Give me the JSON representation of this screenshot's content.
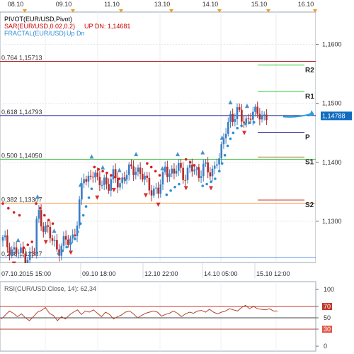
{
  "chart_data": [
    {
      "type": "candlestick",
      "symbol": "EUR/USD",
      "legend": [
        {
          "label": "PIVOT(EUR/USD,Pivot)",
          "color": "#000000"
        },
        {
          "label": "SAR(EUR/USD,0.02,0.2)",
          "suffix": "UP  DN: 1,14681",
          "color": "#cc0000"
        },
        {
          "label": "FRACTAL(EUR/USD)",
          "suffix": "Up  Dn",
          "color": "#2a8fd6"
        }
      ],
      "ylim": [
        1.123,
        1.1655
      ],
      "y_ticks": [
        {
          "value": 1.16,
          "label": "1,1600"
        },
        {
          "value": 1.15,
          "label": "1,1500"
        },
        {
          "value": 1.14,
          "label": "1,1400"
        },
        {
          "value": 1.13,
          "label": "1,1300"
        }
      ],
      "x_tick_labels": [
        "07.10.2015 15:00",
        "09.10 18:00",
        "12.10 22:00",
        "14.10 05:00",
        "15.10 12:00"
      ],
      "top_date_labels": [
        "08.10",
        "09.10",
        "11.10",
        "13.10",
        "14.10",
        "15.10",
        "16.10"
      ],
      "current_price": {
        "value": 1.14788,
        "label": "1,14788"
      },
      "fibonacci_levels": [
        {
          "label": "0,764 1,15713",
          "value": 1.15713,
          "color": "#b22222"
        },
        {
          "label": "0,618 1,14793",
          "value": 1.14793,
          "color": "#1c1c8c"
        },
        {
          "label": "0,500 1,14050",
          "value": 1.1405,
          "color": "#2fbf2f"
        },
        {
          "label": "0,382 1,13307",
          "value": 1.13307,
          "color": "#f4a460"
        },
        {
          "label": "0,236 1,12387",
          "value": 1.12387,
          "color": "#6495ed"
        }
      ],
      "pivot_levels": [
        {
          "label": "R2",
          "value": 1.1565,
          "color": "#33cc33"
        },
        {
          "label": "R1",
          "value": 1.152,
          "color": "#33cc33"
        },
        {
          "label": "P",
          "value": 1.1451,
          "color": "#333399"
        },
        {
          "label": "S1",
          "value": 1.1409,
          "color": "#8b7a1a"
        },
        {
          "label": "S2",
          "value": 1.1336,
          "color": "#cc3333"
        }
      ],
      "price_path": [
        [
          0.0,
          1.1267
        ],
        [
          0.02,
          1.1258
        ],
        [
          0.04,
          1.125
        ],
        [
          0.06,
          1.1245
        ],
        [
          0.08,
          1.1242
        ],
        [
          0.1,
          1.124
        ],
        [
          0.115,
          1.125
        ],
        [
          0.125,
          1.132
        ],
        [
          0.135,
          1.1305
        ],
        [
          0.15,
          1.129
        ],
        [
          0.165,
          1.128
        ],
        [
          0.175,
          1.1268
        ],
        [
          0.185,
          1.1262
        ],
        [
          0.2,
          1.1255
        ],
        [
          0.215,
          1.1258
        ],
        [
          0.225,
          1.1268
        ],
        [
          0.24,
          1.1262
        ],
        [
          0.25,
          1.1275
        ],
        [
          0.27,
          1.13
        ],
        [
          0.28,
          1.134
        ],
        [
          0.29,
          1.138
        ],
        [
          0.3,
          1.1368
        ],
        [
          0.31,
          1.1375
        ],
        [
          0.32,
          1.1388
        ],
        [
          0.33,
          1.1378
        ],
        [
          0.34,
          1.1362
        ],
        [
          0.35,
          1.1365
        ],
        [
          0.365,
          1.1372
        ],
        [
          0.38,
          1.136
        ],
        [
          0.39,
          1.1368
        ],
        [
          0.4,
          1.1375
        ],
        [
          0.42,
          1.1365
        ],
        [
          0.44,
          1.1378
        ],
        [
          0.46,
          1.1385
        ],
        [
          0.48,
          1.1392
        ],
        [
          0.5,
          1.1378
        ],
        [
          0.52,
          1.1362
        ],
        [
          0.54,
          1.1355
        ],
        [
          0.56,
          1.135
        ],
        [
          0.575,
          1.1368
        ],
        [
          0.585,
          1.1395
        ],
        [
          0.6,
          1.1385
        ],
        [
          0.615,
          1.1378
        ],
        [
          0.63,
          1.1392
        ],
        [
          0.645,
          1.1385
        ],
        [
          0.66,
          1.1378
        ],
        [
          0.675,
          1.139
        ],
        [
          0.69,
          1.1385
        ],
        [
          0.705,
          1.138
        ],
        [
          0.72,
          1.1395
        ],
        [
          0.735,
          1.1385
        ],
        [
          0.75,
          1.1378
        ],
        [
          0.76,
          1.139
        ],
        [
          0.77,
          1.141
        ],
        [
          0.78,
          1.1408
        ],
        [
          0.79,
          1.142
        ],
        [
          0.8,
          1.1448
        ],
        [
          0.81,
          1.1465
        ],
        [
          0.82,
          1.148
        ],
        [
          0.83,
          1.1478
        ],
        [
          0.845,
          1.1482
        ],
        [
          0.86,
          1.1475
        ],
        [
          0.875,
          1.147
        ],
        [
          0.89,
          1.1482
        ],
        [
          0.905,
          1.1478
        ],
        [
          0.92,
          1.1485
        ],
        [
          0.935,
          1.148
        ],
        [
          0.95,
          1.1479
        ]
      ],
      "sar_points": [
        [
          0.0,
          1.133
        ],
        [
          0.02,
          1.1322
        ],
        [
          0.04,
          1.1315
        ],
        [
          0.06,
          1.131
        ],
        [
          0.075,
          1.1255
        ],
        [
          0.09,
          1.126
        ],
        [
          0.105,
          1.1265
        ],
        [
          0.12,
          1.133
        ],
        [
          0.135,
          1.1322
        ],
        [
          0.15,
          1.131
        ],
        [
          0.165,
          1.1302
        ],
        [
          0.18,
          1.1296
        ],
        [
          0.2,
          1.1245
        ],
        [
          0.215,
          1.125
        ],
        [
          0.23,
          1.1256
        ],
        [
          0.245,
          1.1263
        ],
        [
          0.26,
          1.127
        ],
        [
          0.27,
          1.1282
        ],
        [
          0.28,
          1.1296
        ],
        [
          0.29,
          1.131
        ],
        [
          0.3,
          1.1325
        ],
        [
          0.31,
          1.134
        ],
        [
          0.32,
          1.1355
        ],
        [
          0.33,
          1.1392
        ],
        [
          0.345,
          1.1388
        ],
        [
          0.36,
          1.1385
        ],
        [
          0.375,
          1.1382
        ],
        [
          0.39,
          1.1378
        ],
        [
          0.405,
          1.1375
        ],
        [
          0.42,
          1.1372
        ],
        [
          0.44,
          1.137
        ],
        [
          0.52,
          1.1398
        ],
        [
          0.535,
          1.1392
        ],
        [
          0.55,
          1.1385
        ],
        [
          0.565,
          1.1378
        ],
        [
          0.59,
          1.1345
        ],
        [
          0.605,
          1.1352
        ],
        [
          0.62,
          1.1358
        ],
        [
          0.635,
          1.1363
        ],
        [
          0.66,
          1.1405
        ],
        [
          0.675,
          1.14
        ],
        [
          0.69,
          1.1395
        ],
        [
          0.705,
          1.139
        ],
        [
          0.72,
          1.136
        ],
        [
          0.735,
          1.1363
        ],
        [
          0.75,
          1.1367
        ],
        [
          0.765,
          1.1372
        ],
        [
          0.78,
          1.1385
        ],
        [
          0.79,
          1.1398
        ],
        [
          0.8,
          1.1412
        ],
        [
          0.81,
          1.1428
        ],
        [
          0.82,
          1.144
        ],
        [
          0.83,
          1.145
        ],
        [
          0.845,
          1.1458
        ],
        [
          0.86,
          1.1462
        ],
        [
          0.875,
          1.1465
        ],
        [
          0.89,
          1.1467
        ],
        [
          0.905,
          1.1468
        ]
      ],
      "fractal_up": [
        0.055,
        0.125,
        0.185,
        0.28,
        0.32,
        0.36,
        0.42,
        0.48,
        0.575,
        0.63,
        0.72,
        0.79,
        0.82,
        0.88
      ],
      "fractal_down": [
        0.04,
        0.1,
        0.155,
        0.245,
        0.34,
        0.4,
        0.515,
        0.56,
        0.66,
        0.75,
        0.87
      ]
    },
    {
      "type": "line",
      "title": "RSI(CUR/USD.Close, 14): 62,34",
      "ylim": [
        0,
        100
      ],
      "y_ticks": [
        0,
        30,
        50,
        70,
        100
      ],
      "levels": [
        70,
        50,
        30
      ],
      "values": [
        48,
        55,
        62,
        58,
        52,
        57,
        50,
        45,
        52,
        60,
        63,
        68,
        58,
        54,
        45,
        52,
        48,
        55,
        60,
        64,
        56,
        62,
        60,
        64,
        58,
        52,
        60,
        56,
        48,
        52,
        55,
        60,
        62,
        57,
        50,
        54,
        58,
        60,
        62,
        60,
        53,
        56,
        58,
        62,
        58,
        52,
        57,
        60,
        58,
        62,
        63,
        60,
        65,
        60,
        57,
        60,
        62,
        66,
        64,
        62,
        68,
        72,
        66,
        70,
        66,
        65,
        64,
        66,
        62,
        62
      ]
    }
  ]
}
